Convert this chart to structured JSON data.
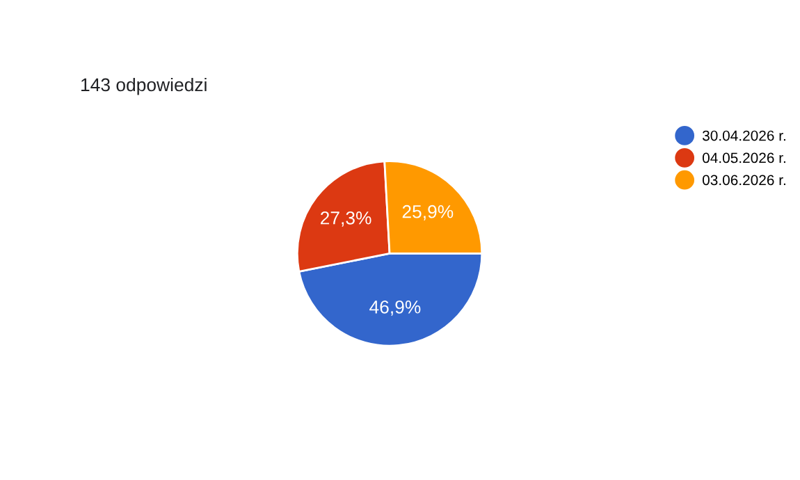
{
  "chart_data": {
    "type": "pie",
    "title": "143 odpowiedzi",
    "categories": [
      "30.04.2026 r.",
      "04.05.2026 r.",
      "03.06.2026 r."
    ],
    "values": [
      46.9,
      27.3,
      25.9
    ],
    "colors": [
      "#3366cc",
      "#dc3912",
      "#ff9900"
    ],
    "value_labels": [
      "46,9%",
      "27,3%",
      "25,9%"
    ],
    "legend": "right"
  }
}
